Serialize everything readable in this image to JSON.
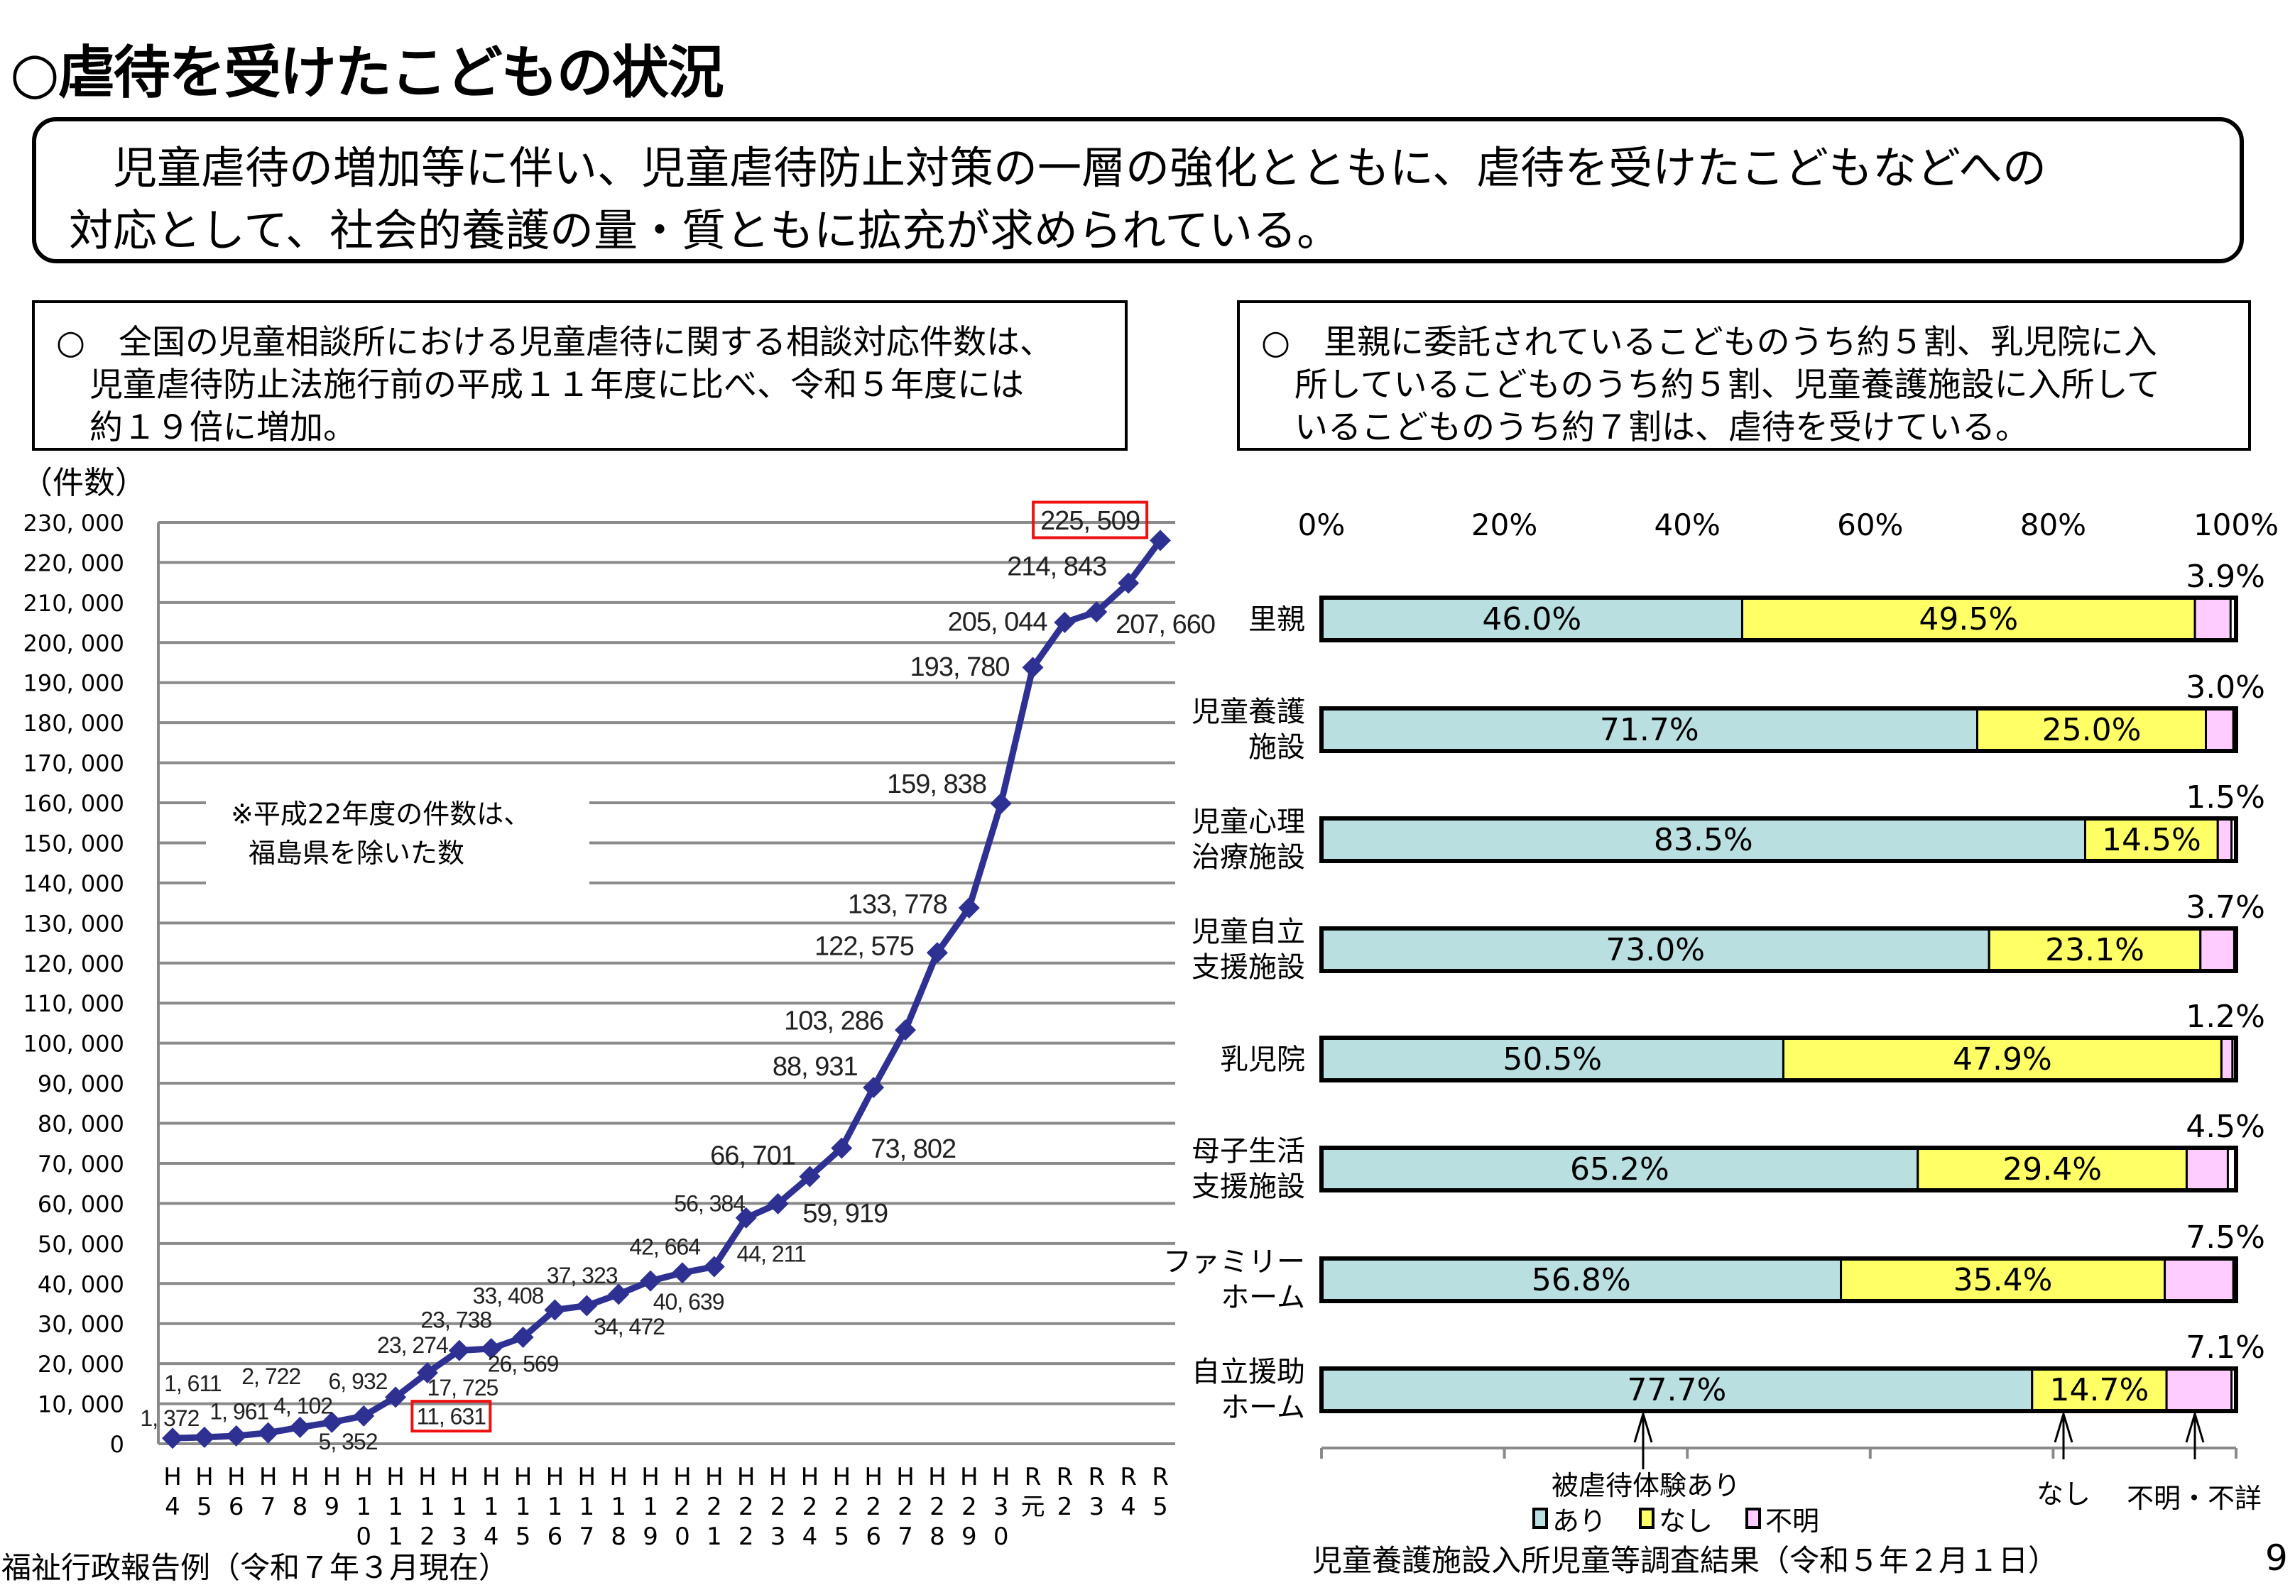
{
  "title": "○虐待を受けたこどもの状況",
  "summary": {
    "line1": "　児童虐待の増加等に伴い、児童虐待防止対策の一層の強化とともに、虐待を受けたこどもなどへの",
    "line2": "対応として、社会的養護の量・質ともに拡充が求められている。"
  },
  "note_left": {
    "line1": "○　全国の児童相談所における児童虐待に関する相談対応件数は、",
    "line2": "　児童虐待防止法施行前の平成１１年度に比べ、令和５年度には",
    "line3": "　約１９倍に増加。"
  },
  "note_right": {
    "line1": "○　里親に委託されているこどものうち約５割、乳児院に入",
    "line2": "　所しているこどものうち約５割、児童養護施設に入所して",
    "line3": "　いるこどものうち約７割は、虐待を受けている。"
  },
  "chart_data": [
    {
      "type": "line",
      "ylabel": "（件数）",
      "ylim": [
        0,
        230000
      ],
      "yticks": [
        "0",
        "10, 000",
        "20, 000",
        "30, 000",
        "40, 000",
        "50, 000",
        "60, 000",
        "70, 000",
        "80, 000",
        "90, 000",
        "100, 000",
        "110, 000",
        "120, 000",
        "130, 000",
        "140, 000",
        "150, 000",
        "160, 000",
        "170, 000",
        "180, 000",
        "190, 000",
        "200, 000",
        "210, 000",
        "220, 000",
        "230, 000"
      ],
      "categories": [
        "H4",
        "H5",
        "H6",
        "H7",
        "H8",
        "H9",
        "H10",
        "H11",
        "H12",
        "H13",
        "H14",
        "H15",
        "H16",
        "H17",
        "H18",
        "H19",
        "H20",
        "H21",
        "H22",
        "H23",
        "H24",
        "H25",
        "H26",
        "H27",
        "H28",
        "H29",
        "H30",
        "R元",
        "R2",
        "R3",
        "R4",
        "R5"
      ],
      "values": [
        1372,
        1611,
        1961,
        2722,
        4102,
        5352,
        6932,
        11631,
        17725,
        23274,
        23738,
        26569,
        33408,
        34472,
        37323,
        40639,
        42664,
        44211,
        56384,
        59919,
        66701,
        73802,
        88931,
        103286,
        122575,
        133778,
        159838,
        193780,
        205044,
        207660,
        214843,
        225509
      ],
      "data_labels": [
        "1, 372",
        "1, 611",
        "1, 961",
        "2, 722",
        "4, 102",
        "5, 352",
        "6, 932",
        "11, 631",
        "17, 725",
        "23, 274",
        "23, 738",
        "26, 569",
        "33, 408",
        "34, 472",
        "37, 323",
        "40, 639",
        "42, 664",
        "44, 211",
        "56, 384",
        "59, 919",
        "66, 701",
        "73, 802",
        "88, 931",
        "103, 286",
        "122, 575",
        "133, 778",
        "159, 838",
        "193, 780",
        "205, 044",
        "207, 660",
        "214, 843",
        "225, 509"
      ],
      "highlighted": [
        "H11",
        "R5"
      ],
      "annotation_line1": "※平成22年度の件数は、",
      "annotation_line2": "福島県を除いた数",
      "grid": true,
      "color": "#2e3192",
      "highlight_color": "#ee1111"
    },
    {
      "type": "bar",
      "stacked": "100%",
      "orientation": "horizontal",
      "xticks": [
        "0%",
        "20%",
        "40%",
        "60%",
        "80%",
        "100%"
      ],
      "categories": [
        "里親",
        "児童養護|施設",
        "児童心理|治療施設",
        "児童自立|支援施設",
        "乳児院",
        "母子生活|支援施設",
        "ファミリー|ホーム",
        "自立援助|ホーム"
      ],
      "series": [
        {
          "name": "あり",
          "color": "#b9dfe1",
          "values": [
            46.0,
            71.7,
            83.5,
            73.0,
            50.5,
            65.2,
            56.8,
            77.7
          ]
        },
        {
          "name": "なし",
          "color": "#ffff66",
          "values": [
            49.5,
            25.0,
            14.5,
            23.1,
            47.9,
            29.4,
            35.4,
            14.7
          ]
        },
        {
          "name": "不明",
          "color": "#ffccff",
          "values": [
            3.9,
            3.0,
            1.5,
            3.7,
            1.2,
            4.5,
            7.5,
            7.1
          ]
        }
      ],
      "legend": "bottom",
      "arrow_labels": {
        "yes": "被虐待体験あり",
        "no": "なし",
        "unknown": "不明・不詳"
      }
    }
  ],
  "footer": {
    "left_source": "福祉行政報告例（令和７年３月現在）",
    "right_source": "児童養護施設入所児童等調査結果（令和５年２月１日）",
    "page_number": "9"
  }
}
